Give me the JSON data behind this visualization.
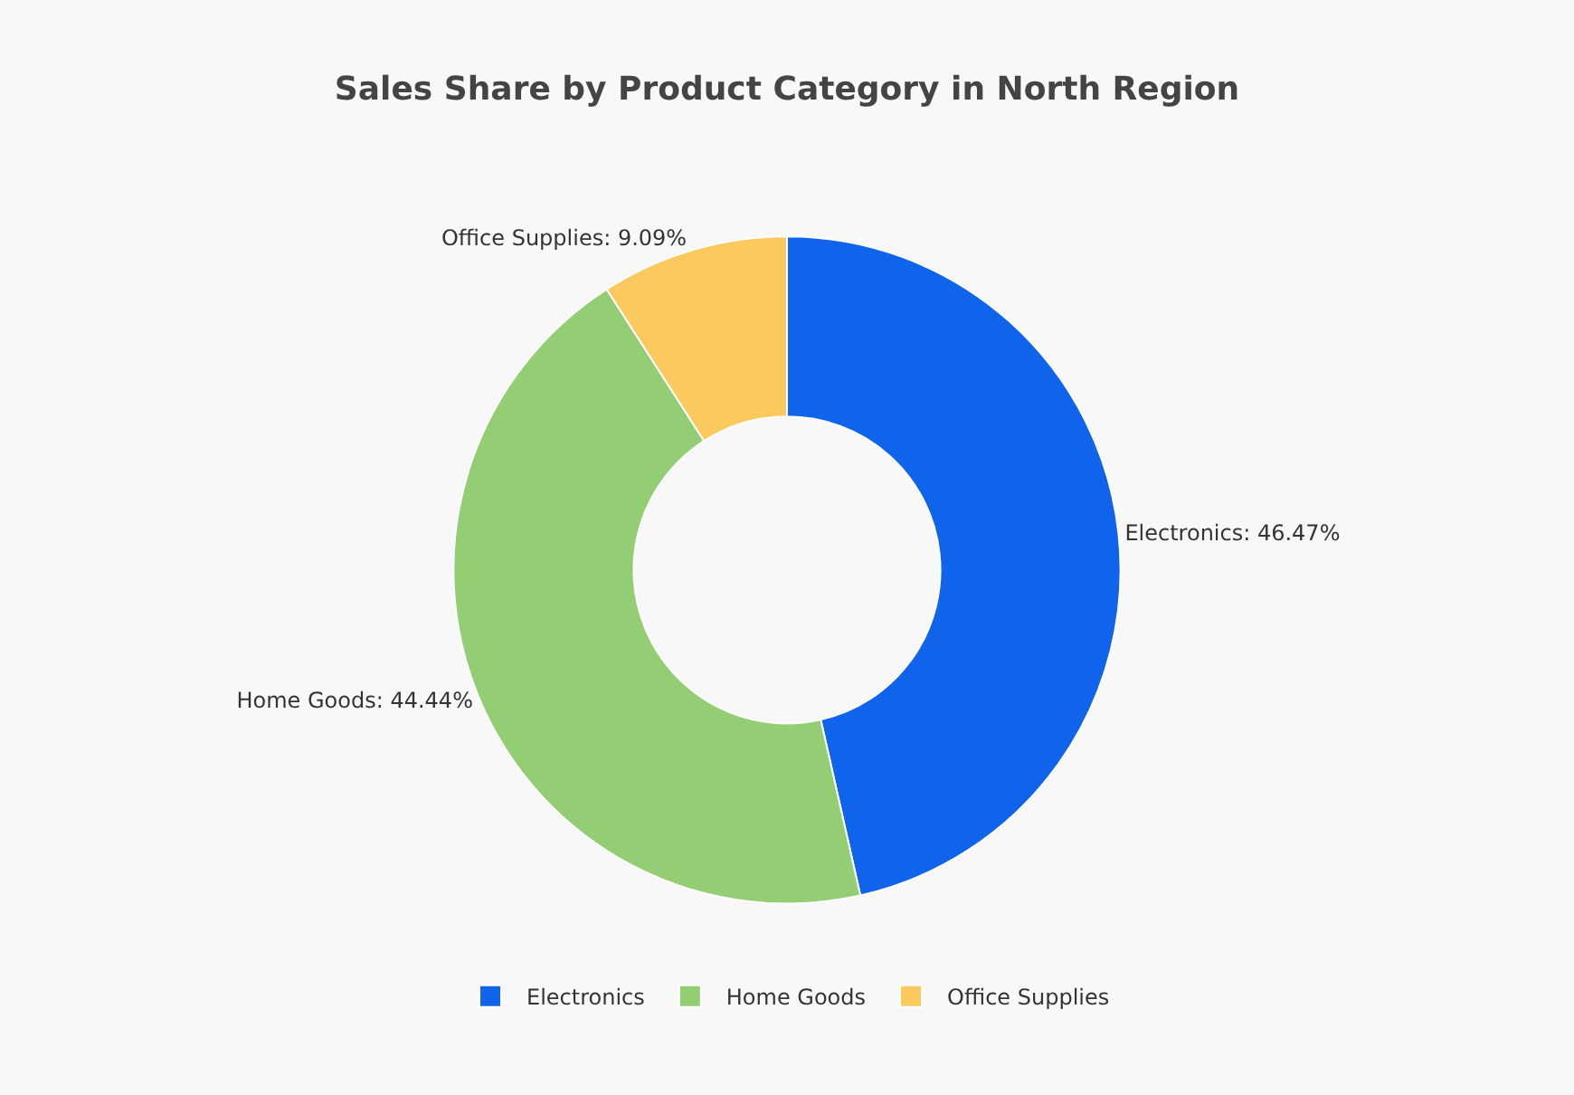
{
  "chart_data": {
    "type": "donut",
    "title": "Sales Share by Product Category in North Region",
    "categories": [
      "Electronics",
      "Home Goods",
      "Office Supplies"
    ],
    "values": [
      46.47,
      44.44,
      9.09
    ],
    "colors": [
      "#1064ec",
      "#93cd74",
      "#fbc95d"
    ],
    "value_labels": [
      "Electronics: 46.47%",
      "Home Goods: 44.44%",
      "Office Supplies: 9.09%"
    ],
    "legend": "bottom"
  }
}
